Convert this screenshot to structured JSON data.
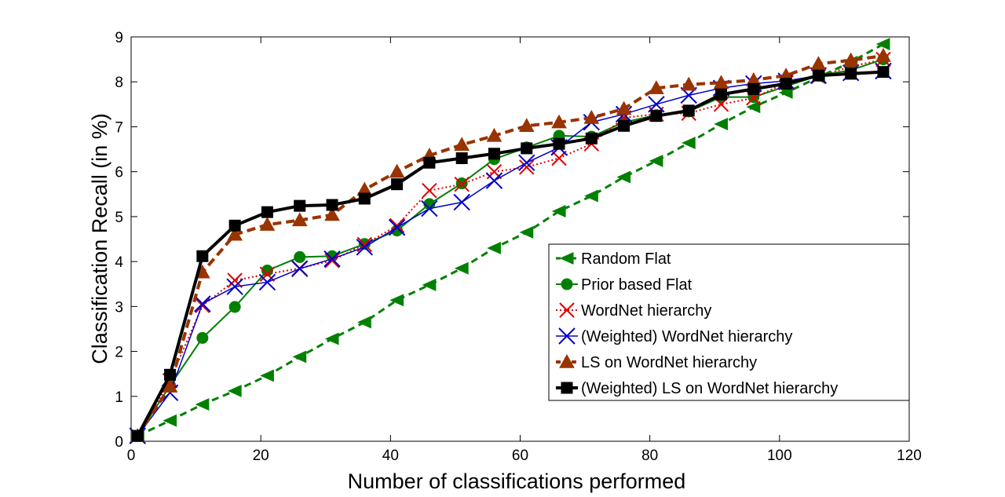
{
  "chart_data": {
    "type": "line",
    "title": "",
    "xlabel": "Number of classifications performed",
    "ylabel": "Classification Recall (in %)",
    "xlim": [
      0,
      120
    ],
    "ylim": [
      0,
      9
    ],
    "xticks": [
      0,
      20,
      40,
      60,
      80,
      100,
      120
    ],
    "yticks": [
      0,
      1,
      2,
      3,
      4,
      5,
      6,
      7,
      8,
      9
    ],
    "xtick_labels": [
      "0",
      "20",
      "40",
      "60",
      "80",
      "100",
      "120"
    ],
    "ytick_labels": [
      "0",
      "1",
      "2",
      "3",
      "4",
      "5",
      "6",
      "7",
      "8",
      "9"
    ],
    "grid": false,
    "legend_position": "bottom-right",
    "x": [
      1,
      6,
      11,
      16,
      21,
      26,
      31,
      36,
      41,
      46,
      51,
      56,
      61,
      66,
      71,
      76,
      81,
      86,
      91,
      96,
      101,
      106,
      111,
      116
    ],
    "series": [
      {
        "name": "Random Flat",
        "color": "#008000",
        "marker": "triangle-left",
        "line": "dashed",
        "values": [
          0.12,
          0.46,
          0.82,
          1.12,
          1.46,
          1.88,
          2.28,
          2.65,
          3.14,
          3.48,
          3.85,
          4.3,
          4.65,
          5.12,
          5.46,
          5.88,
          6.24,
          6.64,
          7.06,
          7.44,
          7.76,
          8.1,
          8.44,
          8.84
        ]
      },
      {
        "name": "Prior based Flat",
        "color": "#008000",
        "marker": "circle",
        "line": "solid",
        "values": [
          0.12,
          1.24,
          2.3,
          2.99,
          3.8,
          4.1,
          4.12,
          4.39,
          4.69,
          5.28,
          5.74,
          6.28,
          6.54,
          6.8,
          6.78,
          7.1,
          7.26,
          7.34,
          7.66,
          7.66,
          7.9,
          8.14,
          8.26,
          8.5
        ]
      },
      {
        "name": "WordNet hierarchy",
        "color": "#e00000",
        "marker": "x",
        "line": "dotted",
        "values": [
          0.12,
          1.35,
          3.02,
          3.58,
          3.72,
          3.85,
          4.02,
          4.38,
          4.8,
          5.58,
          5.72,
          6.0,
          6.1,
          6.3,
          6.62,
          7.2,
          7.28,
          7.3,
          7.5,
          7.64,
          7.98,
          8.12,
          8.34,
          8.5
        ]
      },
      {
        "name": "(Weighted) WordNet hierarchy",
        "color": "#0000cc",
        "marker": "x",
        "line": "solid",
        "values": [
          0.12,
          1.08,
          3.06,
          3.44,
          3.54,
          3.84,
          4.06,
          4.32,
          4.76,
          5.18,
          5.32,
          5.8,
          6.2,
          6.54,
          7.1,
          7.28,
          7.5,
          7.7,
          7.86,
          7.96,
          8.02,
          8.14,
          8.2,
          8.24
        ]
      },
      {
        "name": "LS on WordNet hierarchy",
        "color": "#993300",
        "marker": "triangle-up",
        "line": "dashed",
        "values": [
          0.12,
          1.22,
          3.76,
          4.6,
          4.82,
          4.92,
          5.04,
          5.6,
          6.0,
          6.36,
          6.6,
          6.8,
          7.02,
          7.1,
          7.2,
          7.4,
          7.86,
          7.94,
          7.98,
          8.04,
          8.14,
          8.4,
          8.48,
          8.58
        ]
      },
      {
        "name": "(Weighted) LS on WordNet hierarchy",
        "color": "#000000",
        "marker": "square",
        "line": "solid",
        "values": [
          0.12,
          1.48,
          4.12,
          4.8,
          5.1,
          5.24,
          5.26,
          5.4,
          5.72,
          6.2,
          6.3,
          6.4,
          6.52,
          6.62,
          6.74,
          7.02,
          7.24,
          7.36,
          7.72,
          7.84,
          7.96,
          8.14,
          8.18,
          8.22
        ]
      }
    ]
  }
}
